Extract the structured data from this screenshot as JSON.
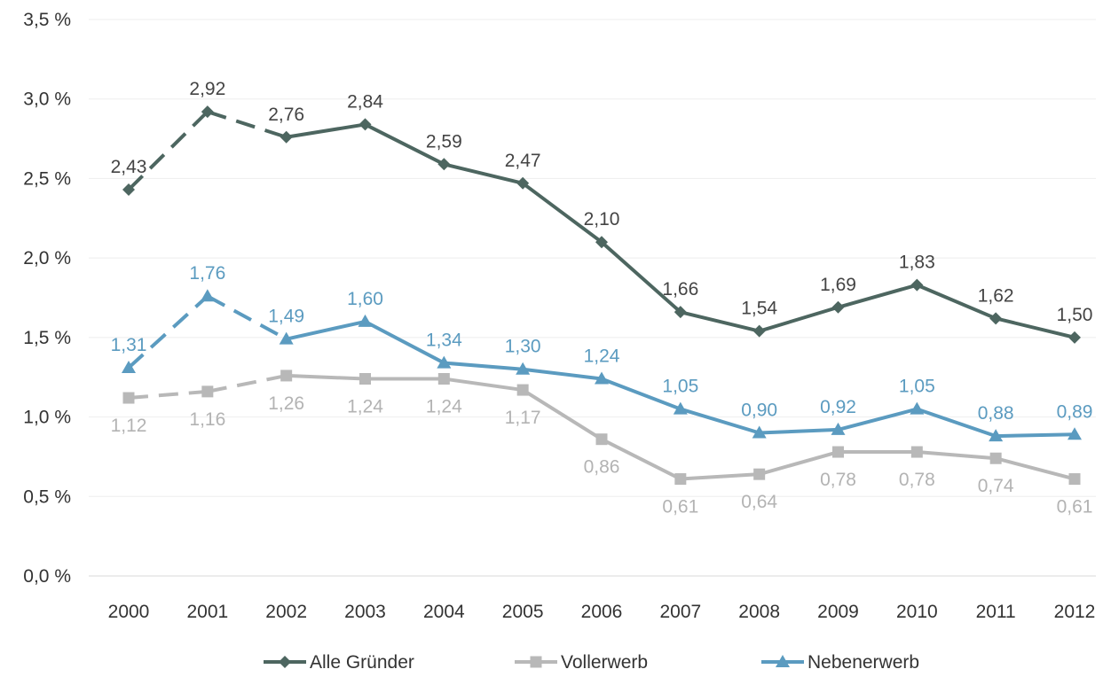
{
  "chart_data": {
    "type": "line",
    "title": "",
    "xlabel": "",
    "ylabel": "",
    "ylim": [
      0,
      3.5
    ],
    "y_ticks": [
      "0,0 %",
      "0,5 %",
      "1,0 %",
      "1,5 %",
      "2,0 %",
      "2,5 %",
      "3,0 %",
      "3,5 %"
    ],
    "y_tick_values": [
      0,
      0.5,
      1.0,
      1.5,
      2.0,
      2.5,
      3.0,
      3.5
    ],
    "categories": [
      "2000",
      "2001",
      "2002",
      "2003",
      "2004",
      "2005",
      "2006",
      "2007",
      "2008",
      "2009",
      "2010",
      "2011",
      "2012"
    ],
    "grid": true,
    "legend_position": "bottom",
    "dashed_segments_through_index": 2,
    "series": [
      {
        "name": "Alle Gründer",
        "color": "#4d6660",
        "label_color": "#444444",
        "marker": "diamond",
        "label_position": "above",
        "values": [
          2.43,
          2.92,
          2.76,
          2.84,
          2.59,
          2.47,
          2.1,
          1.66,
          1.54,
          1.69,
          1.83,
          1.62,
          1.5
        ],
        "labels": [
          "2,43",
          "2,92",
          "2,76",
          "2,84",
          "2,59",
          "2,47",
          "2,10",
          "1,66",
          "1,54",
          "1,69",
          "1,83",
          "1,62",
          "1,50"
        ]
      },
      {
        "name": "Vollerwerb",
        "color": "#b8b8b8",
        "label_color": "#b3b3b3",
        "marker": "square",
        "label_position": "below",
        "values": [
          1.12,
          1.16,
          1.26,
          1.24,
          1.24,
          1.17,
          0.86,
          0.61,
          0.64,
          0.78,
          0.78,
          0.74,
          0.61
        ],
        "labels": [
          "1,12",
          "1,16",
          "1,26",
          "1,24",
          "1,24",
          "1,17",
          "0,86",
          "0,61",
          "0,64",
          "0,78",
          "0,78",
          "0,74",
          "0,61"
        ]
      },
      {
        "name": "Nebenerwerb",
        "color": "#5b9bc0",
        "label_color": "#5b9bc0",
        "marker": "triangle",
        "label_position": "above",
        "values": [
          1.31,
          1.76,
          1.49,
          1.6,
          1.34,
          1.3,
          1.24,
          1.05,
          0.9,
          0.92,
          1.05,
          0.88,
          0.89
        ],
        "labels": [
          "1,31",
          "1,76",
          "1,49",
          "1,60",
          "1,34",
          "1,30",
          "1,24",
          "1,05",
          "0,90",
          "0,92",
          "1,05",
          "0,88",
          "0,89"
        ]
      }
    ]
  }
}
